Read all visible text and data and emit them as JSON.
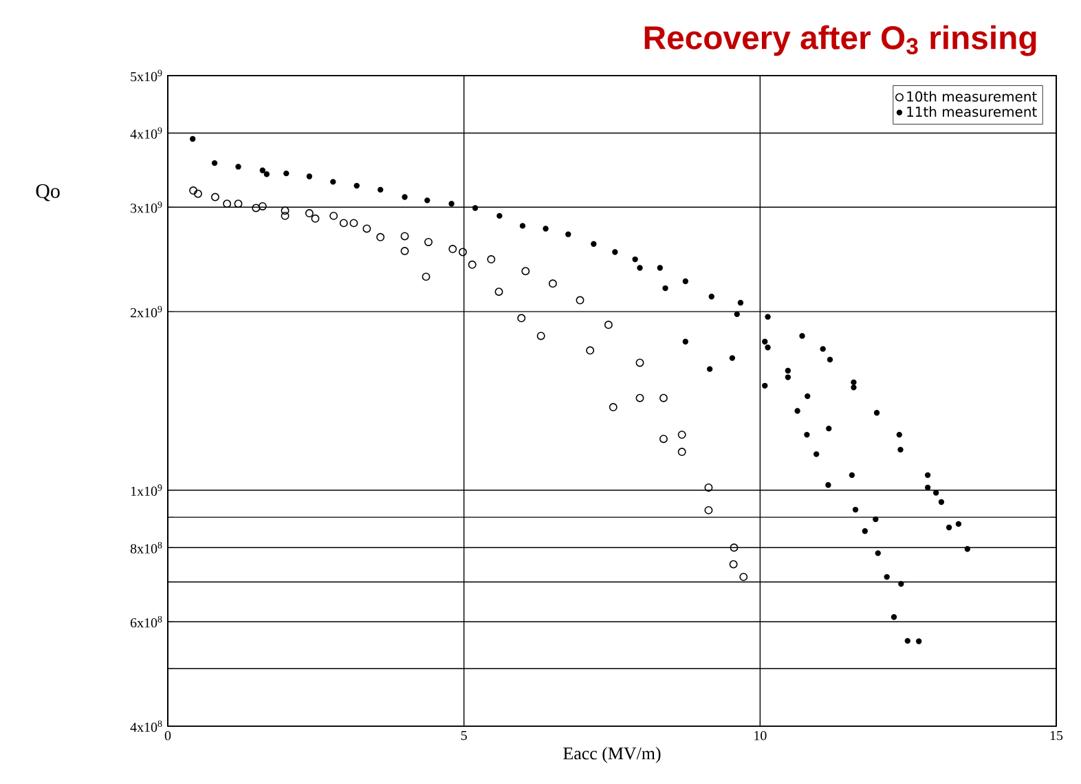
{
  "chart_data": {
    "type": "scatter",
    "title": "Recovery after O$_{3}$ rinsing",
    "xlabel": "Eacc (MV/m)",
    "ylabel": "Qo",
    "log": "y",
    "grid": true,
    "legend": "top right",
    "marker": "circle",
    "xlim": [
      0,
      15
    ],
    "xticks": [
      0,
      5,
      10,
      15
    ],
    "ylim": [
      400000000.0,
      5000000000.0
    ],
    "yticks": [
      {
        "value": 400000000.0,
        "label": "4x10$^{8}$"
      },
      {
        "value": 500000000.0,
        "label": null
      },
      {
        "value": 600000000.0,
        "label": "6x10$^{8}$"
      },
      {
        "value": 700000000.0,
        "label": null
      },
      {
        "value": 800000000.0,
        "label": "8x10$^{8}$"
      },
      {
        "value": 900000000.0,
        "label": null
      },
      {
        "value": 1000000000.0,
        "label": "1x10$^{9}$"
      },
      {
        "value": 2000000000.0,
        "label": "2x10$^{9}$"
      },
      {
        "value": 3000000000.0,
        "label": "3x10$^{9}$"
      },
      {
        "value": 4000000000.0,
        "label": "4x10$^{9}$"
      },
      {
        "value": 5000000000.0,
        "label": "5x10$^{9}$"
      }
    ],
    "series": [
      {
        "name": "10th measurement",
        "color": "#000000",
        "x": [
          0.43,
          0.51,
          0.8,
          1.0,
          1.19,
          1.49,
          1.6,
          1.98,
          1.98,
          2.39,
          2.49,
          2.8,
          2.97,
          3.14,
          3.36,
          3.59,
          4.0,
          4.0,
          4.4,
          4.36,
          4.81,
          4.98,
          5.14,
          5.46,
          5.59,
          6.04,
          5.97,
          6.5,
          6.3,
          6.96,
          7.44,
          7.13,
          7.52,
          7.97,
          7.97,
          8.37,
          8.37,
          8.68,
          8.68,
          9.13,
          9.13,
          9.56,
          9.55,
          9.72
        ],
        "values": [
          3200000000.0,
          3160000000.0,
          3120000000.0,
          3040000000.0,
          3040000000.0,
          2990000000.0,
          3010000000.0,
          2960000000.0,
          2900000000.0,
          2930000000.0,
          2870000000.0,
          2900000000.0,
          2820000000.0,
          2820000000.0,
          2760000000.0,
          2670000000.0,
          2680000000.0,
          2530000000.0,
          2620000000.0,
          2290000000.0,
          2550000000.0,
          2520000000.0,
          2400000000.0,
          2450000000.0,
          2160000000.0,
          2340000000.0,
          1950000000.0,
          2230000000.0,
          1820000000.0,
          2090000000.0,
          1900000000.0,
          1720000000.0,
          1380000000.0,
          1640000000.0,
          1430000000.0,
          1430000000.0,
          1220000000.0,
          1240000000.0,
          1160000000.0,
          1010000000.0,
          925000000.0,
          800000000.0,
          750000000.0,
          714000000.0
        ]
      },
      {
        "name": "11th measurement",
        "color": "#000000",
        "x": [
          0.42,
          0.79,
          1.19,
          1.6,
          1.67,
          2.0,
          2.39,
          2.79,
          3.19,
          3.59,
          4.0,
          4.38,
          4.79,
          5.19,
          5.6,
          5.99,
          6.38,
          6.76,
          7.19,
          7.55,
          7.89,
          7.97,
          8.31,
          8.4,
          8.74,
          9.18,
          8.74,
          9.15,
          9.53,
          9.61,
          9.67,
          10.13,
          10.08,
          10.13,
          10.08,
          10.47,
          10.47,
          10.71,
          11.06,
          11.18,
          10.8,
          10.63,
          11.16,
          10.79,
          10.95,
          11.58,
          11.58,
          11.97,
          12.35,
          12.37,
          11.55,
          11.15,
          12.83,
          12.83,
          12.97,
          13.06,
          11.61,
          11.95,
          11.77,
          13.19,
          13.35,
          13.5,
          11.99,
          12.14,
          12.38,
          12.26,
          12.49,
          12.68
        ],
        "values": [
          3910000000.0,
          3560000000.0,
          3510000000.0,
          3460000000.0,
          3410000000.0,
          3420000000.0,
          3380000000.0,
          3310000000.0,
          3260000000.0,
          3210000000.0,
          3120000000.0,
          3080000000.0,
          3040000000.0,
          2990000000.0,
          2900000000.0,
          2790000000.0,
          2760000000.0,
          2700000000.0,
          2600000000.0,
          2520000000.0,
          2450000000.0,
          2370000000.0,
          2370000000.0,
          2190000000.0,
          2250000000.0,
          2120000000.0,
          1780000000.0,
          1600000000.0,
          1670000000.0,
          1980000000.0,
          2070000000.0,
          1960000000.0,
          1780000000.0,
          1740000000.0,
          1500000000.0,
          1590000000.0,
          1550000000.0,
          1820000000.0,
          1730000000.0,
          1660000000.0,
          1440000000.0,
          1360000000.0,
          1270000000.0,
          1240000000.0,
          1150000000.0,
          1520000000.0,
          1490000000.0,
          1350000000.0,
          1240000000.0,
          1170000000.0,
          1060000000.0,
          1020000000.0,
          1060000000.0,
          1010000000.0,
          990000000.0,
          955000000.0,
          927000000.0,
          893000000.0,
          853000000.0,
          865000000.0,
          877000000.0,
          796000000.0,
          783000000.0,
          714000000.0,
          695000000.0,
          611000000.0,
          557000000.0,
          556000000.0
        ]
      }
    ]
  }
}
